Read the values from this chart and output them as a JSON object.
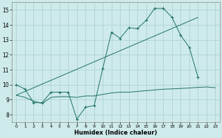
{
  "xlabel": "Humidex (Indice chaleur)",
  "xlim": [
    -0.5,
    23.5
  ],
  "ylim": [
    7.5,
    15.5
  ],
  "xticks": [
    0,
    1,
    2,
    3,
    4,
    5,
    6,
    7,
    8,
    9,
    10,
    11,
    12,
    13,
    14,
    15,
    16,
    17,
    18,
    19,
    20,
    21,
    22,
    23
  ],
  "yticks": [
    8,
    9,
    10,
    11,
    12,
    13,
    14,
    15
  ],
  "bg_color": "#ceeaea",
  "grid_color": "#a8cece",
  "line_color": "#1a7060",
  "line1_x": [
    0,
    1,
    2,
    3,
    4,
    5,
    6,
    7,
    8,
    9,
    10,
    11,
    12,
    13,
    14,
    15,
    16,
    17,
    18,
    19,
    20,
    21
  ],
  "line1_y": [
    10.0,
    9.7,
    8.8,
    8.8,
    9.5,
    9.5,
    9.5,
    7.7,
    8.5,
    8.6,
    11.1,
    13.5,
    13.1,
    13.8,
    13.75,
    14.3,
    15.1,
    15.1,
    14.5,
    13.3,
    12.5,
    10.5
  ],
  "line2_x": [
    0,
    23
  ],
  "line2_y": [
    9.3,
    9.8
  ],
  "line3_x": [
    0,
    1,
    2,
    3,
    4,
    5,
    6,
    7,
    8,
    9,
    10,
    11,
    12,
    13,
    14,
    15,
    16,
    17,
    18,
    19,
    20,
    21,
    22,
    23
  ],
  "line3_y": [
    9.3,
    9.15,
    8.9,
    8.75,
    9.15,
    9.2,
    9.2,
    9.15,
    9.25,
    9.25,
    9.35,
    9.45,
    9.5,
    9.5,
    9.55,
    9.6,
    9.65,
    9.7,
    9.72,
    9.75,
    9.78,
    9.82,
    9.85,
    9.8
  ],
  "line4_x": [
    0,
    21
  ],
  "line4_y": [
    9.3,
    14.5
  ]
}
